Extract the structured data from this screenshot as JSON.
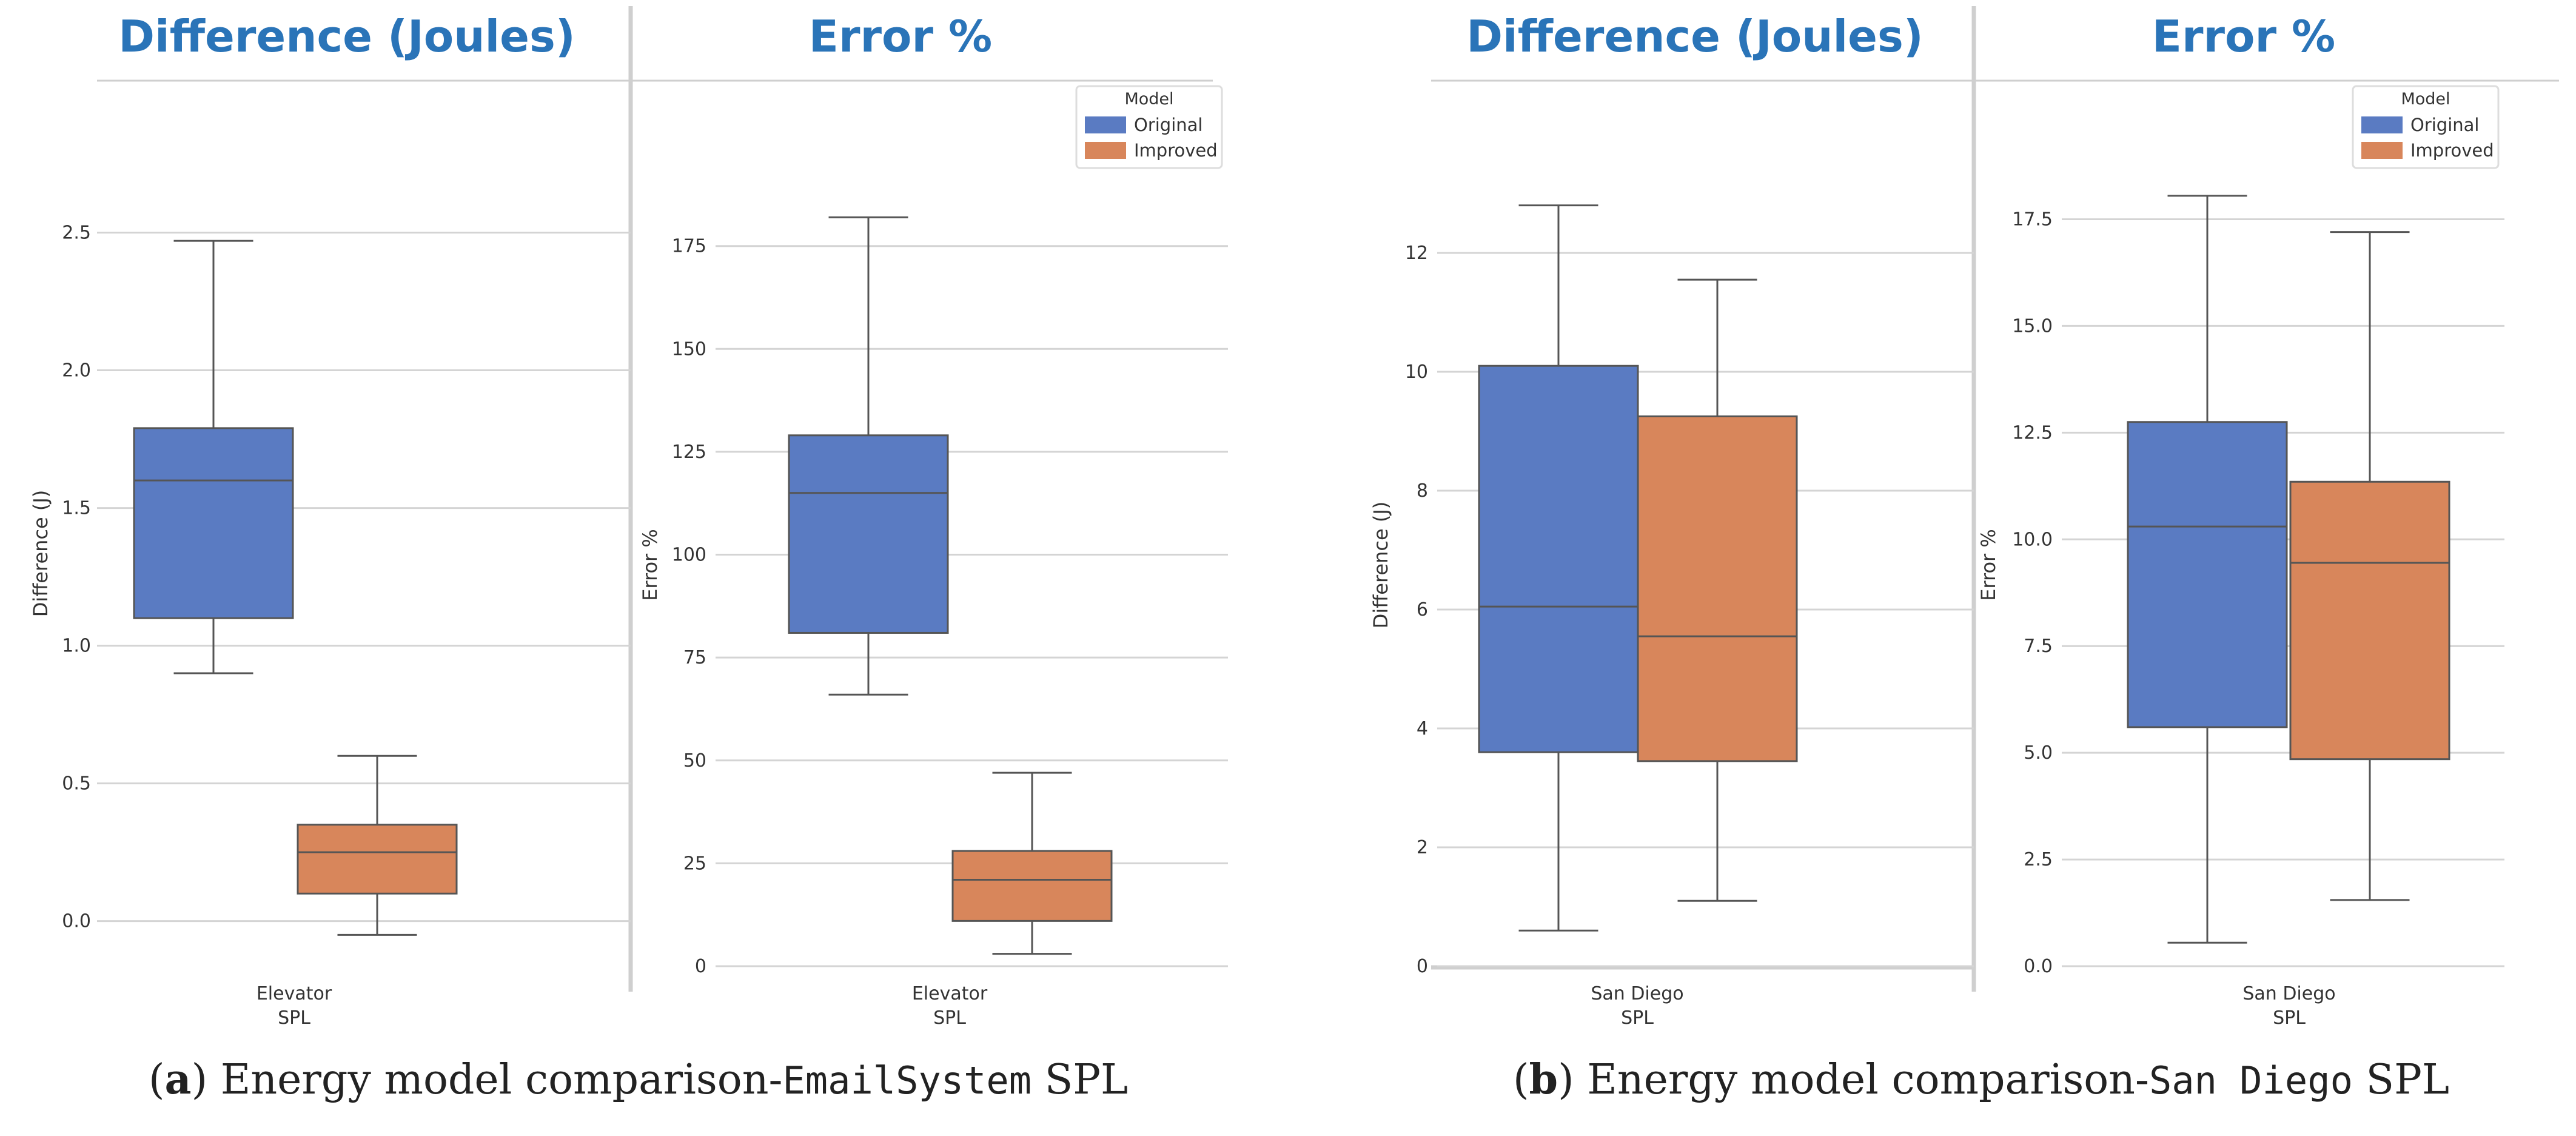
{
  "chart_data": [
    {
      "type": "box",
      "panel": "a-left",
      "title": "Difference (Joules)",
      "ylabel": "Difference (J)",
      "xlabel": "SPL",
      "category": "Elevator",
      "ylim": [
        -0.08,
        2.75
      ],
      "yticks": [
        0.0,
        0.5,
        1.0,
        1.5,
        2.0,
        2.5
      ],
      "ytick_labels": [
        "0.0",
        "0.5",
        "1.0",
        "1.5",
        "2.0",
        "2.5"
      ],
      "series": [
        {
          "name": "Original",
          "whisker_low": 0.9,
          "q1": 1.1,
          "median": 1.6,
          "q3": 1.79,
          "whisker_high": 2.47
        },
        {
          "name": "Improved",
          "whisker_low": -0.05,
          "q1": 0.1,
          "median": 0.25,
          "q3": 0.35,
          "whisker_high": 0.6
        }
      ]
    },
    {
      "type": "box",
      "panel": "a-right",
      "title": "Error %",
      "ylabel": "Error %",
      "xlabel": "SPL",
      "category": "Elevator",
      "ylim": [
        0,
        195
      ],
      "yticks": [
        0,
        25,
        50,
        75,
        100,
        125,
        150,
        175
      ],
      "ytick_labels": [
        "0",
        "25",
        "50",
        "75",
        "100",
        "125",
        "150",
        "175"
      ],
      "series": [
        {
          "name": "Original",
          "whisker_low": 66,
          "q1": 81,
          "median": 115,
          "q3": 129,
          "whisker_high": 182
        },
        {
          "name": "Improved",
          "whisker_low": 3,
          "q1": 11,
          "median": 21,
          "q3": 28,
          "whisker_high": 47
        }
      ],
      "legend": {
        "title": "Model",
        "entries": [
          "Original",
          "Improved"
        ],
        "placement": "top-right"
      }
    },
    {
      "type": "box",
      "panel": "b-left",
      "title": "Difference (Joules)",
      "ylabel": "Difference (J)",
      "xlabel": "SPL",
      "category": "San Diego",
      "ylim": [
        0,
        13.5
      ],
      "yticks": [
        0,
        2,
        4,
        6,
        8,
        10,
        12
      ],
      "ytick_labels": [
        "0",
        "2",
        "4",
        "6",
        "8",
        "10",
        "12"
      ],
      "series": [
        {
          "name": "Original",
          "whisker_low": 0.6,
          "q1": 3.6,
          "median": 6.05,
          "q3": 10.1,
          "whisker_high": 12.8
        },
        {
          "name": "Improved",
          "whisker_low": 1.1,
          "q1": 3.45,
          "median": 5.55,
          "q3": 9.25,
          "whisker_high": 11.55
        }
      ]
    },
    {
      "type": "box",
      "panel": "b-right",
      "title": "Error %",
      "ylabel": "Error %",
      "xlabel": "SPL",
      "category": "San Diego",
      "ylim": [
        0,
        18.8
      ],
      "yticks": [
        0.0,
        2.5,
        5.0,
        7.5,
        10.0,
        12.5,
        15.0,
        17.5
      ],
      "ytick_labels": [
        "0.0",
        "2.5",
        "5.0",
        "7.5",
        "10.0",
        "12.5",
        "15.0",
        "17.5"
      ],
      "series": [
        {
          "name": "Original",
          "whisker_low": 0.55,
          "q1": 5.6,
          "median": 10.3,
          "q3": 12.75,
          "whisker_high": 18.05
        },
        {
          "name": "Improved",
          "whisker_low": 1.55,
          "q1": 4.85,
          "median": 9.45,
          "q3": 11.35,
          "whisker_high": 17.2
        }
      ],
      "legend": {
        "title": "Model",
        "entries": [
          "Original",
          "Improved"
        ],
        "placement": "top-right"
      }
    }
  ],
  "colors": {
    "Original": "#5a7bc2",
    "Improved": "#d8865b",
    "title": "#2a74b8",
    "grid": "#d4d4d4"
  },
  "captions": {
    "a": {
      "label": "a",
      "text_before": ") Energy model comparison-",
      "code": "EmailSystem",
      "text_after": " SPL"
    },
    "b": {
      "label": "b",
      "text_before": ") Energy model comparison-",
      "code": "San Diego",
      "text_after": " SPL"
    }
  }
}
